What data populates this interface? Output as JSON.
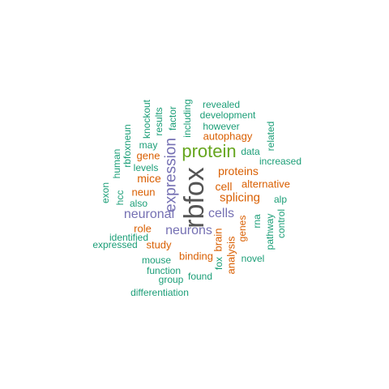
{
  "palette": {
    "teal": "#1b9e77",
    "orange": "#d95f02",
    "purple": "#7570b3",
    "green": "#66a61e",
    "gray": "#555555"
  },
  "words": [
    {
      "text": "rbfox",
      "color": "gray"
    },
    {
      "text": "protein",
      "color": "green"
    },
    {
      "text": "expression",
      "color": "purple"
    },
    {
      "text": "neuronal",
      "color": "purple"
    },
    {
      "text": "cells",
      "color": "purple"
    },
    {
      "text": "neurons",
      "color": "purple"
    },
    {
      "text": "splicing",
      "color": "orange"
    },
    {
      "text": "proteins",
      "color": "orange"
    },
    {
      "text": "cell",
      "color": "orange"
    },
    {
      "text": "mice",
      "color": "orange"
    },
    {
      "text": "neun",
      "color": "orange"
    },
    {
      "text": "gene",
      "color": "orange"
    },
    {
      "text": "brain",
      "color": "orange"
    },
    {
      "text": "genes",
      "color": "orange"
    },
    {
      "text": "binding",
      "color": "orange"
    },
    {
      "text": "analysis",
      "color": "orange"
    },
    {
      "text": "autophagy",
      "color": "orange"
    },
    {
      "text": "alternative",
      "color": "orange"
    },
    {
      "text": "role",
      "color": "orange"
    },
    {
      "text": "study",
      "color": "orange"
    },
    {
      "text": "revealed",
      "color": "teal"
    },
    {
      "text": "development",
      "color": "teal"
    },
    {
      "text": "however",
      "color": "teal"
    },
    {
      "text": "including",
      "color": "teal"
    },
    {
      "text": "factor",
      "color": "teal"
    },
    {
      "text": "results",
      "color": "teal"
    },
    {
      "text": "knockout",
      "color": "teal"
    },
    {
      "text": "rbfoxneun",
      "color": "teal"
    },
    {
      "text": "may",
      "color": "teal"
    },
    {
      "text": "human",
      "color": "teal"
    },
    {
      "text": "levels",
      "color": "teal"
    },
    {
      "text": "exon",
      "color": "teal"
    },
    {
      "text": "hcc",
      "color": "teal"
    },
    {
      "text": "also",
      "color": "teal"
    },
    {
      "text": "data",
      "color": "teal"
    },
    {
      "text": "related",
      "color": "teal"
    },
    {
      "text": "increased",
      "color": "teal"
    },
    {
      "text": "alp",
      "color": "teal"
    },
    {
      "text": "rna",
      "color": "teal"
    },
    {
      "text": "control",
      "color": "teal"
    },
    {
      "text": "pathway",
      "color": "teal"
    },
    {
      "text": "identified",
      "color": "teal"
    },
    {
      "text": "expressed",
      "color": "teal"
    },
    {
      "text": "mouse",
      "color": "teal"
    },
    {
      "text": "fox",
      "color": "teal"
    },
    {
      "text": "novel",
      "color": "teal"
    },
    {
      "text": "function",
      "color": "teal"
    },
    {
      "text": "found",
      "color": "teal"
    },
    {
      "text": "group",
      "color": "teal"
    },
    {
      "text": "differentiation",
      "color": "teal"
    }
  ]
}
